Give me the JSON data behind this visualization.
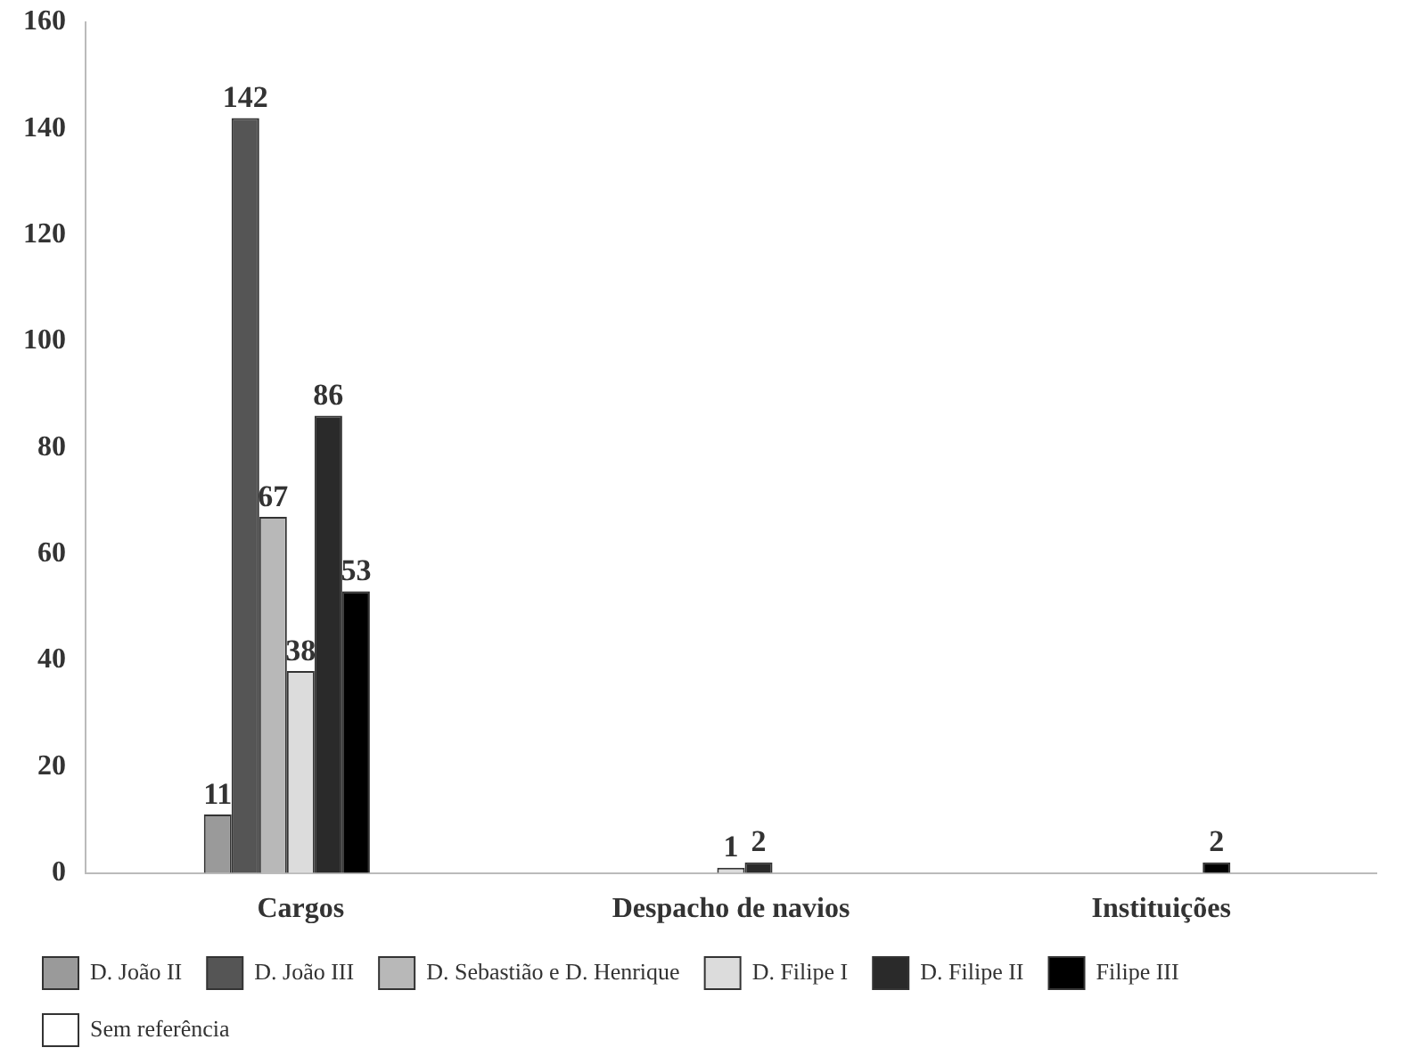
{
  "chart_data": {
    "type": "bar",
    "categories": [
      "Cargos",
      "Despacho de navios",
      "Instituições"
    ],
    "series": [
      {
        "name": "D. João II",
        "color": "#9a9a9a",
        "values": [
          11,
          null,
          null
        ]
      },
      {
        "name": "D. João III",
        "color": "#555555",
        "values": [
          142,
          null,
          null
        ]
      },
      {
        "name": "D. Sebastião e D. Henrique",
        "color": "#b8b8b8",
        "values": [
          67,
          null,
          null
        ]
      },
      {
        "name": "D. Filipe I",
        "color": "#dcdcdc",
        "values": [
          38,
          1,
          null
        ]
      },
      {
        "name": "D. Filipe II",
        "color": "#2a2a2a",
        "values": [
          86,
          2,
          null
        ]
      },
      {
        "name": "Filipe III",
        "color": "#000000",
        "values": [
          53,
          null,
          2
        ]
      },
      {
        "name": "Sem referência",
        "color": "#ffffff",
        "values": [
          null,
          null,
          null
        ]
      }
    ],
    "ylim": [
      0,
      160
    ],
    "yticks": [
      0,
      20,
      40,
      60,
      80,
      100,
      120,
      140,
      160
    ],
    "grid": false,
    "legend": "bottom",
    "data_labels": true
  }
}
